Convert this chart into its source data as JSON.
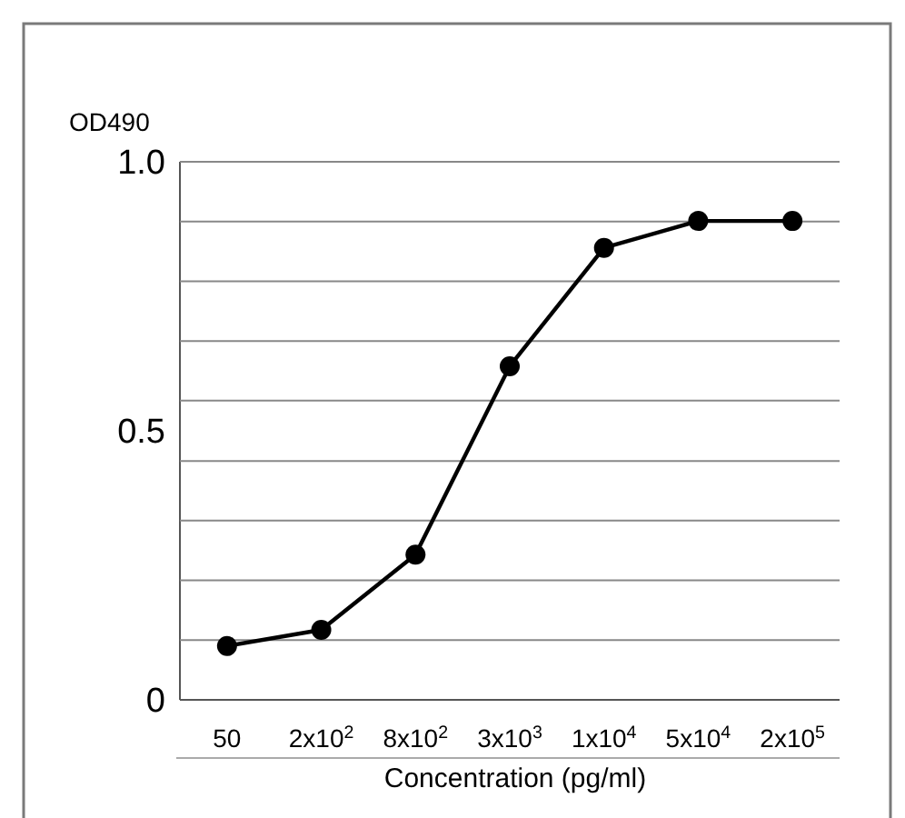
{
  "chart_data": {
    "type": "line",
    "ylabel": "OD490",
    "xlabel": "Concentration (pg/ml)",
    "categories": [
      "50",
      "2x10$^{2}$",
      "8x10$^{2}$",
      "3x10$^{3}$",
      "1x10$^{4}$",
      "5x10$^{4}$",
      "2x10$^{5}$"
    ],
    "series": [
      {
        "color": "#000000",
        "values": [
          0.1,
          0.13,
          0.27,
          0.62,
          0.84,
          0.89,
          0.89
        ]
      }
    ],
    "ylim": [
      0,
      1
    ],
    "yticks": [
      0,
      0.5,
      {
        "value": 1,
        "label": "1.0"
      }
    ],
    "ref_lines": [
      {
        "axis": "y",
        "value": 0.111,
        "color": "#888888"
      },
      {
        "axis": "y",
        "value": 0.222,
        "color": "#888888"
      },
      {
        "axis": "y",
        "value": 0.333,
        "color": "#888888"
      },
      {
        "axis": "y",
        "value": 0.444,
        "color": "#888888"
      },
      {
        "axis": "y",
        "value": 0.556,
        "color": "#888888"
      },
      {
        "axis": "y",
        "value": 0.667,
        "color": "#888888"
      },
      {
        "axis": "y",
        "value": 0.778,
        "color": "#888888"
      },
      {
        "axis": "y",
        "value": 0.889,
        "color": "#888888"
      },
      {
        "axis": "y",
        "value": 1,
        "color": "#888888"
      }
    ],
    "marker": "circle",
    "line_style": "solid"
  }
}
